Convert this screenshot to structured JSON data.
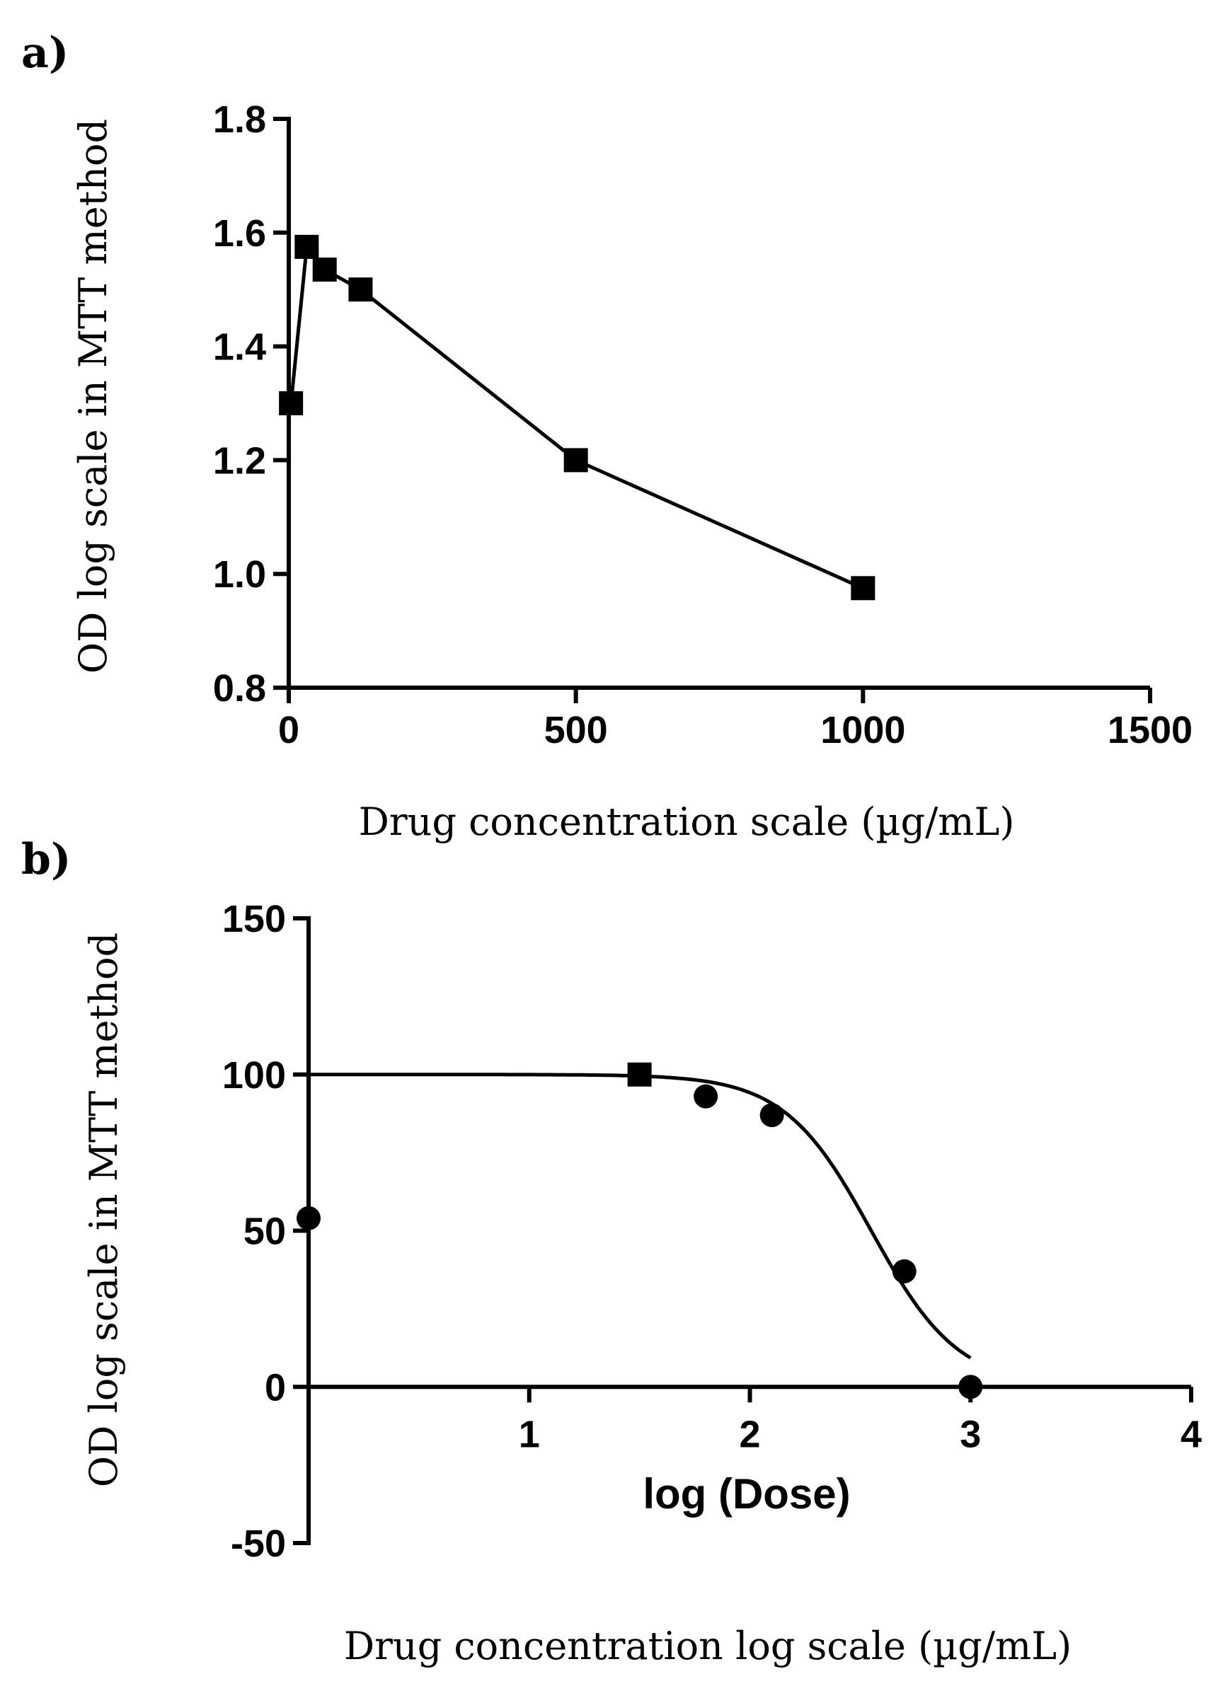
{
  "chart_data": [
    {
      "panel": "a)",
      "type": "line",
      "xlabel": "Drug concentration scale (µg/mL)",
      "ylabel": "OD log scale in MTT method",
      "xlim": [
        0,
        1500
      ],
      "ylim": [
        0.8,
        1.8
      ],
      "xticks": [
        0,
        500,
        1000,
        1500
      ],
      "xtick_labels": [
        "0",
        "500",
        "1000",
        "1500"
      ],
      "yticks": [
        0.8,
        1.0,
        1.2,
        1.4,
        1.6,
        1.8
      ],
      "ytick_labels": [
        "0.8",
        "1.0",
        "1.2",
        "1.4",
        "1.6",
        "1.8"
      ],
      "marker": "square",
      "series": [
        {
          "name": "OD",
          "x": [
            3.9,
            31.25,
            62.5,
            125,
            500,
            1000
          ],
          "y": [
            1.3,
            1.575,
            1.535,
            1.5,
            1.2,
            0.975
          ]
        }
      ]
    },
    {
      "panel": "b)",
      "type": "scatter",
      "xlabel": "log (Dose)",
      "caption": "Drug concentration log scale (µg/mL)",
      "ylabel": "OD log scale in MTT method",
      "xlim": [
        0,
        4
      ],
      "ylim": [
        -50,
        150
      ],
      "xticks": [
        1,
        2,
        3,
        4
      ],
      "xtick_labels": [
        "1",
        "2",
        "3",
        "4"
      ],
      "yticks": [
        -50,
        0,
        50,
        100,
        150
      ],
      "ytick_labels": [
        "-50",
        "0",
        "50",
        "100",
        "150"
      ],
      "points": [
        {
          "x": 0.0,
          "y": 54,
          "marker": "circle"
        },
        {
          "x": 1.5,
          "y": 100,
          "marker": "square"
        },
        {
          "x": 1.8,
          "y": 93,
          "marker": "circle"
        },
        {
          "x": 2.1,
          "y": 87,
          "marker": "circle"
        },
        {
          "x": 2.7,
          "y": 37,
          "marker": "circle"
        },
        {
          "x": 3.0,
          "y": 0,
          "marker": "circle"
        }
      ],
      "fit_curve": {
        "model": "sigmoidal dose-response",
        "top": 100,
        "bottom": 0,
        "logEC50": 2.55,
        "hill_slope": -2.2,
        "x_range": [
          0,
          3.0
        ]
      }
    }
  ]
}
